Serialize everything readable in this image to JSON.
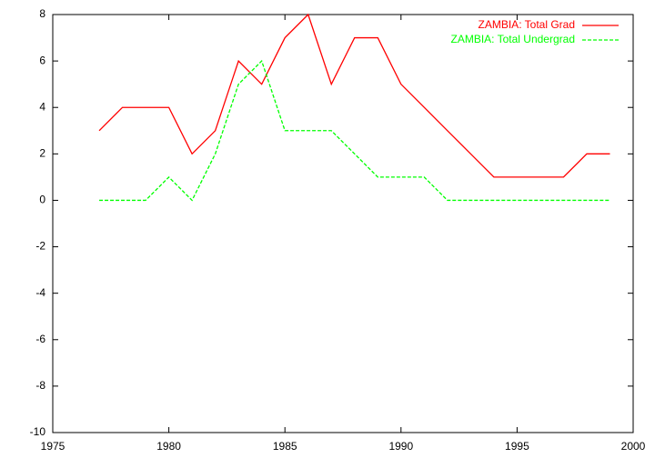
{
  "chart_data": {
    "type": "line",
    "x": [
      1977,
      1978,
      1979,
      1980,
      1981,
      1982,
      1983,
      1984,
      1985,
      1986,
      1987,
      1988,
      1989,
      1990,
      1991,
      1992,
      1993,
      1994,
      1995,
      1996,
      1997,
      1998,
      1999
    ],
    "series": [
      {
        "name": "ZAMBIA: Total Grad",
        "color": "#ff0000",
        "line_style": "solid",
        "values": [
          3,
          4,
          4,
          4,
          2,
          3,
          6,
          5,
          7,
          8,
          5,
          7,
          7,
          5,
          4,
          3,
          2,
          1,
          1,
          1,
          1,
          2,
          2
        ]
      },
      {
        "name": "ZAMBIA: Total Undergrad",
        "color": "#00ff00",
        "line_style": "dashed",
        "values": [
          0,
          0,
          0,
          1,
          0,
          2,
          5,
          6,
          3,
          3,
          3,
          2,
          1,
          1,
          1,
          0,
          0,
          0,
          0,
          0,
          0,
          0,
          0
        ]
      }
    ],
    "xlim": [
      1975,
      2000
    ],
    "xticks": [
      1975,
      1980,
      1985,
      1990,
      1995,
      2000
    ],
    "ylim": [
      -10,
      8
    ],
    "yticks": [
      -10,
      -8,
      -6,
      -4,
      -2,
      0,
      2,
      4,
      6,
      8
    ],
    "legend": "top-right"
  }
}
